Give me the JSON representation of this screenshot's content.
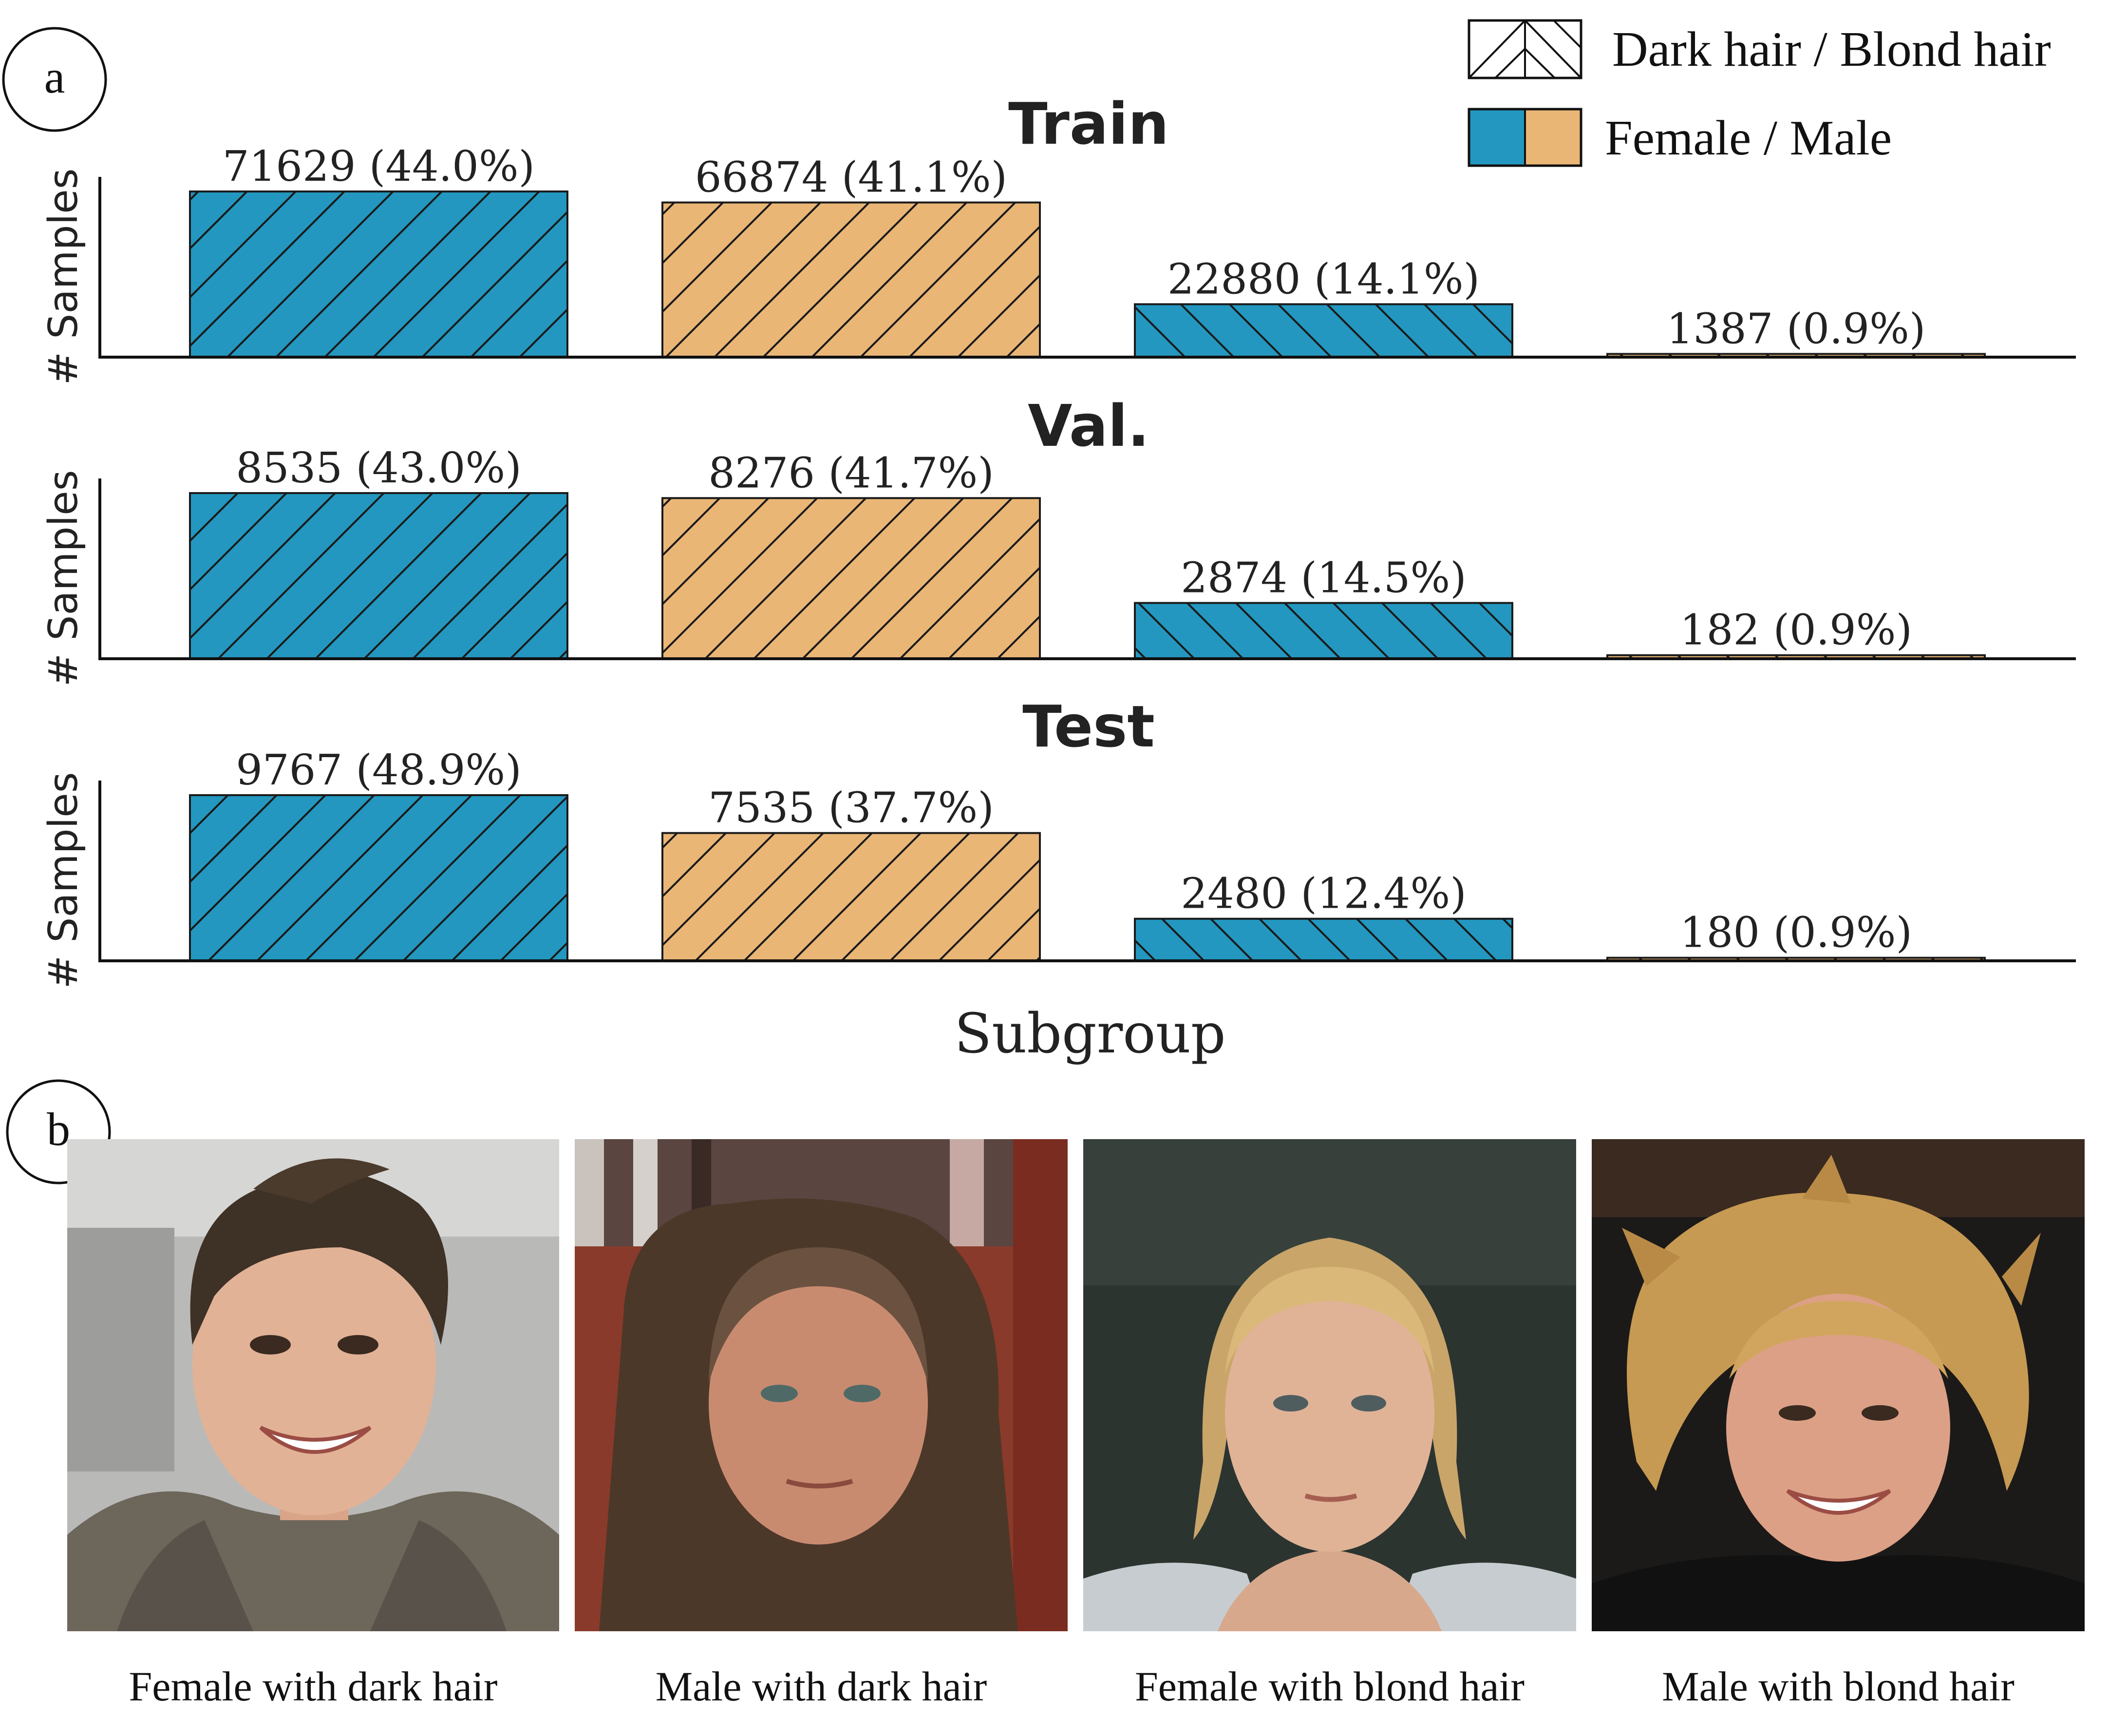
{
  "panel_labels": {
    "a": "a",
    "b": "b"
  },
  "legend": {
    "hatch_entry": "Dark hair / Blond hair",
    "color_entry": "Female / Male"
  },
  "colors": {
    "female": "#2397bf",
    "male": "#eab676",
    "edge": "#1a1a1a"
  },
  "chart_data": [
    {
      "type": "bar",
      "title": "Train",
      "ylabel": "# Samples",
      "categories": [
        "Female with dark hair",
        "Male with dark hair",
        "Female with blond hair",
        "Male with blond hair"
      ],
      "values": [
        71629,
        66874,
        22880,
        1387
      ],
      "labels": [
        "71629 (44.0%)",
        "66874 (41.1%)",
        "22880 (14.1%)",
        "1387 (0.9%)"
      ],
      "colors": [
        "female",
        "male",
        "female",
        "male"
      ],
      "hatches": [
        "dark",
        "dark",
        "blond",
        "blond"
      ],
      "ylim": [
        0,
        71629
      ]
    },
    {
      "type": "bar",
      "title": "Val.",
      "ylabel": "# Samples",
      "categories": [
        "Female with dark hair",
        "Male with dark hair",
        "Female with blond hair",
        "Male with blond hair"
      ],
      "values": [
        8535,
        8276,
        2874,
        182
      ],
      "labels": [
        "8535 (43.0%)",
        "8276 (41.7%)",
        "2874 (14.5%)",
        "182 (0.9%)"
      ],
      "colors": [
        "female",
        "male",
        "female",
        "male"
      ],
      "hatches": [
        "dark",
        "dark",
        "blond",
        "blond"
      ],
      "ylim": [
        0,
        8535
      ]
    },
    {
      "type": "bar",
      "title": "Test",
      "ylabel": "# Samples",
      "xlabel": "Subgroup",
      "categories": [
        "Female with dark hair",
        "Male with dark hair",
        "Female with blond hair",
        "Male with blond hair"
      ],
      "values": [
        9767,
        7535,
        2480,
        180
      ],
      "labels": [
        "9767 (48.9%)",
        "7535 (37.7%)",
        "2480 (12.4%)",
        "180 (0.9%)"
      ],
      "colors": [
        "female",
        "male",
        "female",
        "male"
      ],
      "hatches": [
        "dark",
        "dark",
        "blond",
        "blond"
      ],
      "ylim": [
        0,
        9767
      ]
    }
  ],
  "examples": [
    {
      "caption": "Female with dark hair",
      "icon": "female-dark-hair-face"
    },
    {
      "caption": "Male with dark hair",
      "icon": "male-dark-hair-face"
    },
    {
      "caption": "Female with blond hair",
      "icon": "female-blond-hair-face"
    },
    {
      "caption": "Male with blond hair",
      "icon": "male-blond-hair-face"
    }
  ]
}
